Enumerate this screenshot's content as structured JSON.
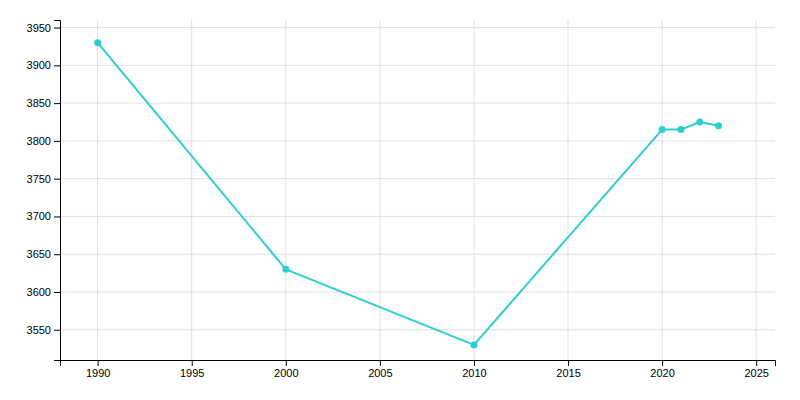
{
  "chart_data": {
    "type": "line",
    "x": [
      1990,
      2000,
      2010,
      2020,
      2021,
      2022,
      2023
    ],
    "values": [
      3930,
      3630,
      3530,
      3815,
      3815,
      3825,
      3820
    ],
    "color": "#2ECECE",
    "marker": "circle",
    "xlim": [
      1988,
      2026
    ],
    "ylim": [
      3510,
      3960
    ],
    "xticks": [
      1990,
      1995,
      2000,
      2005,
      2010,
      2015,
      2020,
      2025
    ],
    "yticks": [
      3550,
      3600,
      3650,
      3700,
      3750,
      3800,
      3850,
      3900,
      3950
    ],
    "grid": true
  }
}
